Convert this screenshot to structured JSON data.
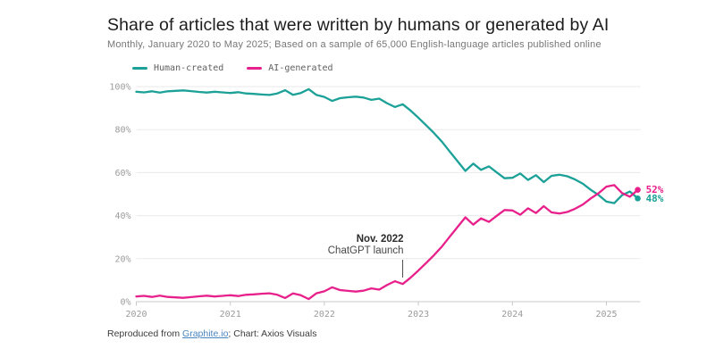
{
  "header": {
    "title": "Share of articles that were written by humans or generated by AI",
    "subtitle": "Monthly, January 2020 to May 2025; Based on a sample of 65,000 English-language articles published online"
  },
  "chart_data": {
    "type": "line",
    "frequency": "monthly",
    "x_start": "Jan 2020",
    "x_end": "May 2025",
    "x_axis": {
      "ticks": [
        "2020",
        "2021",
        "2022",
        "2023",
        "2024",
        "2025"
      ]
    },
    "y_axis": {
      "range": [
        0,
        100
      ],
      "ticks": [
        {
          "value": 100,
          "label": "100%"
        },
        {
          "value": 80,
          "label": "80%"
        },
        {
          "value": 60,
          "label": "60%"
        },
        {
          "value": 40,
          "label": "40%"
        },
        {
          "value": 20,
          "label": "20%"
        },
        {
          "value": 0,
          "label": "0%"
        }
      ]
    },
    "grid": true,
    "legend_position": "top-left",
    "series": [
      {
        "id": "human",
        "name": "Human-created",
        "color": "#1ba197",
        "end_label": "48%",
        "values": [
          97.6,
          97.3,
          97.8,
          97.2,
          97.8,
          98.0,
          98.2,
          97.9,
          97.5,
          97.2,
          97.6,
          97.3,
          97.0,
          97.4,
          96.8,
          96.6,
          96.3,
          96.1,
          96.8,
          98.3,
          96.2,
          97.0,
          98.8,
          96.1,
          95.2,
          93.3,
          94.6,
          95.0,
          95.3,
          94.9,
          93.8,
          94.4,
          92.3,
          90.5,
          91.8,
          88.9,
          85.5,
          82.0,
          78.4,
          74.4,
          69.8,
          65.3,
          60.8,
          64.2,
          61.3,
          62.9,
          60.1,
          57.4,
          57.6,
          59.6,
          56.6,
          58.8,
          55.6,
          58.5,
          59.0,
          58.3,
          56.8,
          54.8,
          52.0,
          49.6,
          46.5,
          45.8,
          49.5,
          51.2,
          48.0
        ]
      },
      {
        "id": "ai",
        "name": "AI-generated",
        "color": "#e8208b",
        "end_label": "52%",
        "values": [
          2.4,
          2.7,
          2.2,
          2.8,
          2.2,
          2.0,
          1.8,
          2.1,
          2.5,
          2.8,
          2.4,
          2.7,
          3.0,
          2.6,
          3.2,
          3.4,
          3.7,
          3.9,
          3.2,
          1.7,
          3.8,
          3.0,
          1.2,
          3.9,
          4.8,
          6.7,
          5.4,
          5.0,
          4.7,
          5.1,
          6.2,
          5.6,
          7.7,
          9.5,
          8.2,
          11.1,
          14.5,
          18.0,
          21.6,
          25.6,
          30.2,
          34.7,
          39.2,
          35.8,
          38.7,
          37.1,
          39.9,
          42.6,
          42.4,
          40.4,
          43.4,
          41.2,
          44.4,
          41.5,
          41.0,
          41.7,
          43.2,
          45.2,
          48.0,
          50.4,
          53.5,
          54.2,
          50.5,
          48.8,
          52.0
        ]
      }
    ],
    "annotation": {
      "line1": "Nov. 2022",
      "line2": "ChatGPT launch",
      "month_index": 34
    }
  },
  "footer": {
    "prefix": "Reproduced from ",
    "link_text": "Graphite.io",
    "suffix": "; Chart: Axios Visuals",
    "link_color": "#4a86c0"
  }
}
